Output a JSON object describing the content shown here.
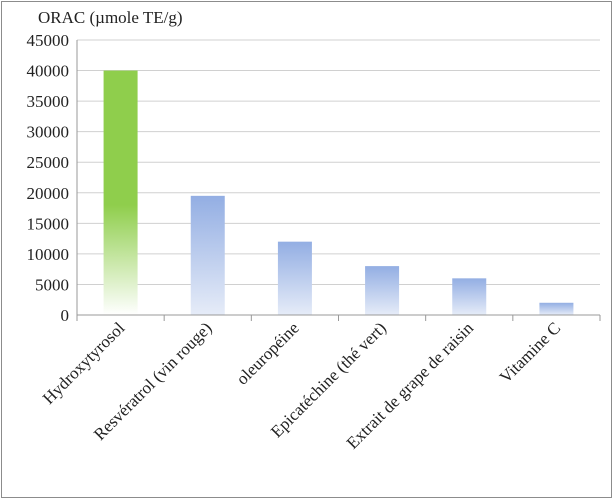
{
  "chart_data": {
    "type": "bar",
    "ylabel": "ORAC (µmole TE/g)",
    "xlabel": "",
    "title": "",
    "categories": [
      "Hydroxytyrosol",
      "Resvératrol (vin rouge)",
      "oleuropéine",
      "Epicatéchine (thé vert)",
      "Extrait de grape de raisin",
      "Vitamine C"
    ],
    "values": [
      40000,
      19500,
      12000,
      8000,
      6000,
      2000
    ],
    "bar_colors": [
      "#8fce4c",
      "#93aee3",
      "#93aee3",
      "#93aee3",
      "#93aee3",
      "#93aee3"
    ],
    "ylim": [
      0,
      45000
    ],
    "yticks": [
      0,
      5000,
      10000,
      15000,
      20000,
      25000,
      30000,
      35000,
      40000,
      45000
    ],
    "grid": true,
    "legend": "none"
  }
}
